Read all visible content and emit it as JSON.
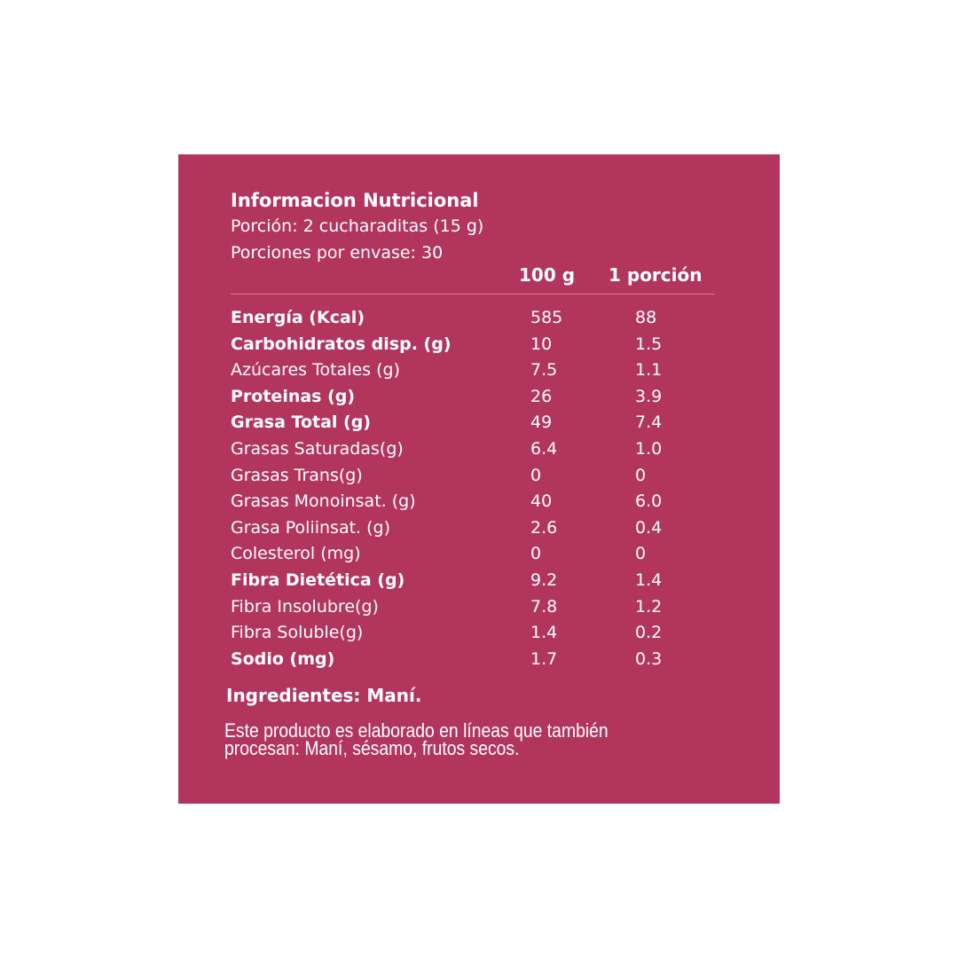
{
  "background_color": "#b2355e",
  "title": "Informacion Nutricional",
  "portion": "Porción:   2 cucharaditas (15 g)",
  "portions_per_pack": "Porciones por envase:  30",
  "columns": [
    "100 g",
    "1 porción"
  ],
  "rows": [
    {
      "label": "Energía (Kcal)",
      "per100": "585",
      "perPortion": "88",
      "bold": true
    },
    {
      "label": "Carbohidratos disp. (g)",
      "per100": "10",
      "perPortion": "1.5",
      "bold": true
    },
    {
      "label": "Azúcares Totales (g)",
      "per100": "7.5",
      "perPortion": "1.1",
      "bold": false
    },
    {
      "label": "Proteinas (g)",
      "per100": "26",
      "perPortion": "3.9",
      "bold": true
    },
    {
      "label": "Grasa Total (g)",
      "per100": "49",
      "perPortion": "7.4",
      "bold": true
    },
    {
      "label": "Grasas Saturadas(g)",
      "per100": "6.4",
      "perPortion": "1.0",
      "bold": false
    },
    {
      "label": "Grasas Trans(g)",
      "per100": "0",
      "perPortion": "0",
      "bold": false
    },
    {
      "label": "Grasas Monoinsat. (g)",
      "per100": "40",
      "perPortion": "6.0",
      "bold": false
    },
    {
      "label": "Grasa Poliinsat. (g)",
      "per100": "2.6",
      "perPortion": "0.4",
      "bold": false
    },
    {
      "label": "Colesterol (mg)",
      "per100": "0",
      "perPortion": "0",
      "bold": false
    },
    {
      "label": "Fibra Dietética (g)",
      "per100": "9.2",
      "perPortion": "1.4",
      "bold": true
    },
    {
      "label": "Fibra Insolubre(g)",
      "per100": "7.8",
      "perPortion": "1.2",
      "bold": false
    },
    {
      "label": "Fibra Soluble(g)",
      "per100": "1.4",
      "perPortion": "0.2",
      "bold": false
    },
    {
      "label": "Sodio (mg)",
      "per100": "1.7",
      "perPortion": "0.3",
      "bold": true
    }
  ],
  "ingredients": "Ingredientes: Maní.",
  "note_lines": [
    "Este producto es elaborado en líneas que también",
    "procesan: Maní, sésamo, frutos secos."
  ]
}
